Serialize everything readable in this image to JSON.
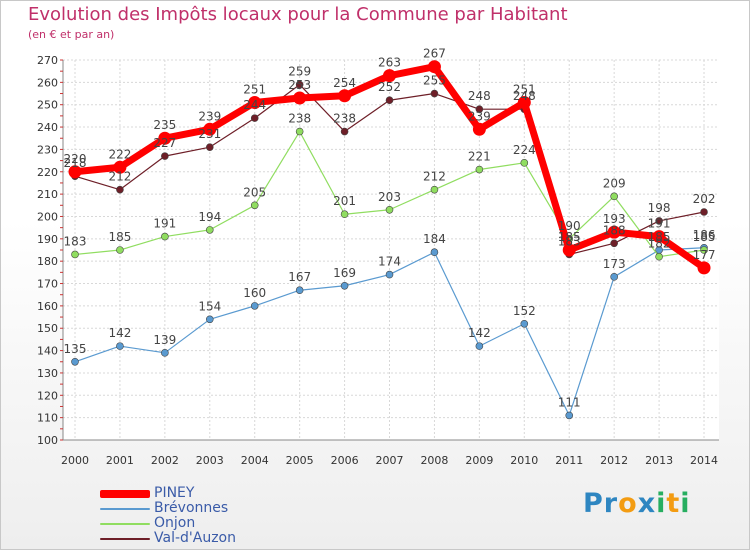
{
  "header": {
    "title": "Evolution des Impôts locaux pour la Commune par Habitant",
    "subtitle": "(en € et par an)"
  },
  "chart_data": {
    "type": "line",
    "title": "Evolution des Impôts locaux pour la Commune par Habitant",
    "subtitle": "(en € et par an)",
    "xlabel": "",
    "ylabel": "",
    "ylim": [
      100,
      270
    ],
    "y_ticks": [
      100,
      110,
      120,
      130,
      140,
      150,
      160,
      170,
      180,
      190,
      200,
      210,
      220,
      230,
      240,
      250,
      260,
      270
    ],
    "grid": true,
    "legend_position": "bottom-left",
    "categories": [
      "2000",
      "2001",
      "2002",
      "2003",
      "2004",
      "2005",
      "2006",
      "2007",
      "2008",
      "2009",
      "2010",
      "2011",
      "2012",
      "2013",
      "2014"
    ],
    "series": [
      {
        "name": "PINEY",
        "color": "#ff0000",
        "values": [
          220,
          222,
          235,
          239,
          251,
          253,
          254,
          263,
          267,
          239,
          251,
          185,
          193,
          191,
          177
        ],
        "labels": [
          "220",
          "222",
          "235",
          "239",
          "251",
          "253",
          "254",
          "263",
          "267",
          "239",
          "251",
          "185",
          "193",
          "191",
          "177"
        ]
      },
      {
        "name": "Brévonnes",
        "color": "#5a9ad0",
        "values": [
          135,
          142,
          139,
          154,
          160,
          167,
          169,
          174,
          184,
          142,
          152,
          111,
          173,
          185,
          186
        ],
        "labels": [
          "135",
          "142",
          "139",
          "154",
          "160",
          "167",
          "169",
          "174",
          "184",
          "142",
          "152",
          "111",
          "173",
          "185",
          "186"
        ]
      },
      {
        "name": "Onjon",
        "color": "#90dd60",
        "values": [
          183,
          185,
          191,
          194,
          205,
          238,
          201,
          203,
          212,
          221,
          224,
          190,
          209,
          182,
          185
        ],
        "labels": [
          "183",
          "185",
          "191",
          "194",
          "205",
          "238",
          "201",
          "203",
          "212",
          "221",
          "224",
          "190",
          "209",
          "182",
          "185"
        ]
      },
      {
        "name": "Val-d'Auzon",
        "color": "#6e1f28",
        "values": [
          218,
          212,
          227,
          231,
          244,
          259,
          238,
          252,
          255,
          248,
          248,
          183,
          188,
          198,
          202
        ],
        "labels": [
          "218",
          "212",
          "227",
          "231",
          "244",
          "259",
          "238",
          "252",
          "255",
          "248",
          "248",
          "183",
          "188",
          "198",
          "202"
        ]
      }
    ]
  },
  "legend": {
    "items": [
      {
        "name": "PINEY",
        "color": "#ff0000"
      },
      {
        "name": "Brévonnes",
        "color": "#5a9ad0"
      },
      {
        "name": "Onjon",
        "color": "#90dd60"
      },
      {
        "name": "Val-d'Auzon",
        "color": "#6e1f28"
      }
    ]
  },
  "logo": {
    "text": "Proxiti",
    "letters": [
      "P",
      "r",
      "o",
      "x",
      "i",
      "t",
      "i"
    ],
    "colors": [
      "#2e86c1",
      "#2e86c1",
      "#f39c12",
      "#2e86c1",
      "#27ae60",
      "#f39c12",
      "#27ae60"
    ]
  }
}
